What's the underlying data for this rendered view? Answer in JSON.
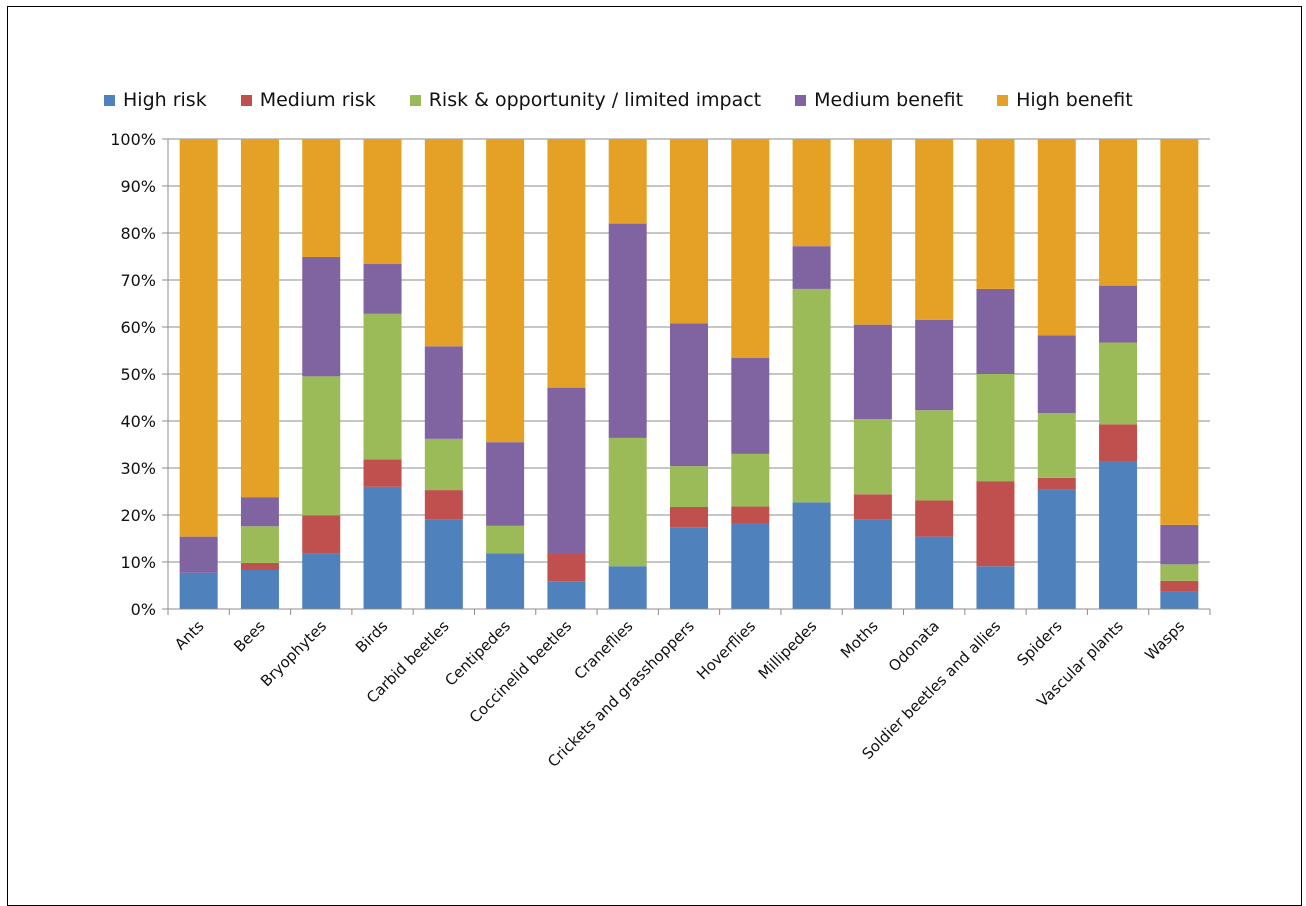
{
  "chart_data": {
    "type": "bar",
    "stacked": true,
    "normalized": true,
    "categories": [
      "Ants",
      "Bees",
      "Bryophytes",
      "Birds",
      "Carbid beetles",
      "Centipedes",
      "Coccinelid beetles",
      "Craneflies",
      "Crickets and grasshoppers",
      "Hoverflies",
      "Millipedes",
      "Moths",
      "Odonata",
      "Soldier beetles and allies",
      "Spiders",
      "Vascular plants",
      "Wasps"
    ],
    "series": [
      {
        "name": "High risk",
        "color": "#4f81bd",
        "values": [
          7.7,
          8.3,
          11.9,
          26.0,
          19.0,
          11.8,
          5.9,
          9.1,
          17.4,
          18.2,
          22.7,
          19.0,
          15.4,
          9.1,
          25.4,
          31.3,
          3.7
        ]
      },
      {
        "name": "Medium risk",
        "color": "#c0504d",
        "values": [
          0,
          1.5,
          8.0,
          5.8,
          6.3,
          0,
          5.9,
          0,
          4.3,
          3.6,
          0,
          5.4,
          7.7,
          18.1,
          2.5,
          8.0,
          2.3
        ]
      },
      {
        "name": "Risk & opportunity / limited impact",
        "color": "#9bbb59",
        "values": [
          0,
          7.8,
          29.6,
          31.0,
          10.9,
          5.9,
          0,
          27.3,
          8.7,
          11.2,
          45.4,
          16.0,
          19.2,
          22.8,
          13.8,
          17.4,
          3.5
        ]
      },
      {
        "name": "Medium benefit",
        "color": "#8064a2",
        "values": [
          7.7,
          6.2,
          25.4,
          10.6,
          19.7,
          17.8,
          35.3,
          45.6,
          30.4,
          20.4,
          9.1,
          20.1,
          19.2,
          18.1,
          16.5,
          12.1,
          8.4
        ]
      },
      {
        "name": "High benefit",
        "color": "#e5a126",
        "values": [
          84.6,
          76.2,
          25.1,
          26.6,
          44.1,
          64.5,
          52.9,
          18.0,
          39.2,
          46.6,
          22.8,
          39.5,
          38.5,
          31.9,
          41.8,
          31.2,
          82.1
        ]
      }
    ],
    "y_ticks": [
      "0%",
      "10%",
      "20%",
      "30%",
      "40%",
      "50%",
      "60%",
      "70%",
      "80%",
      "90%",
      "100%"
    ],
    "ylim": [
      0,
      100
    ],
    "grid": true,
    "legend_position": "top"
  }
}
